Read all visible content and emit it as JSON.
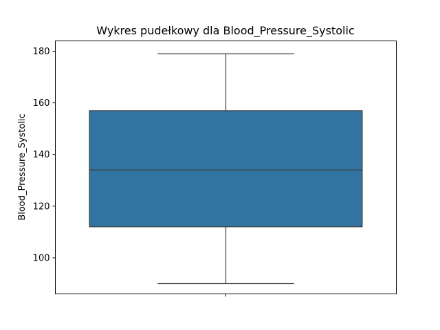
{
  "chart_data": {
    "type": "box",
    "title": "Wykres pudełkowy dla Blood_Pressure_Systolic",
    "xlabel": "",
    "ylabel": "Blood_Pressure_Systolic",
    "ylim": [
      86,
      184
    ],
    "yticks": [
      100,
      120,
      140,
      160,
      180
    ],
    "categories": [
      ""
    ],
    "boxes": [
      {
        "whisker_low": 90,
        "q1": 112,
        "median": 134,
        "q3": 157,
        "whisker_high": 179
      }
    ],
    "colors": {
      "box_fill": "#3274a1",
      "box_edge": "#3d3d3d",
      "axes": "#000000"
    },
    "grid": false,
    "legend": "none"
  }
}
